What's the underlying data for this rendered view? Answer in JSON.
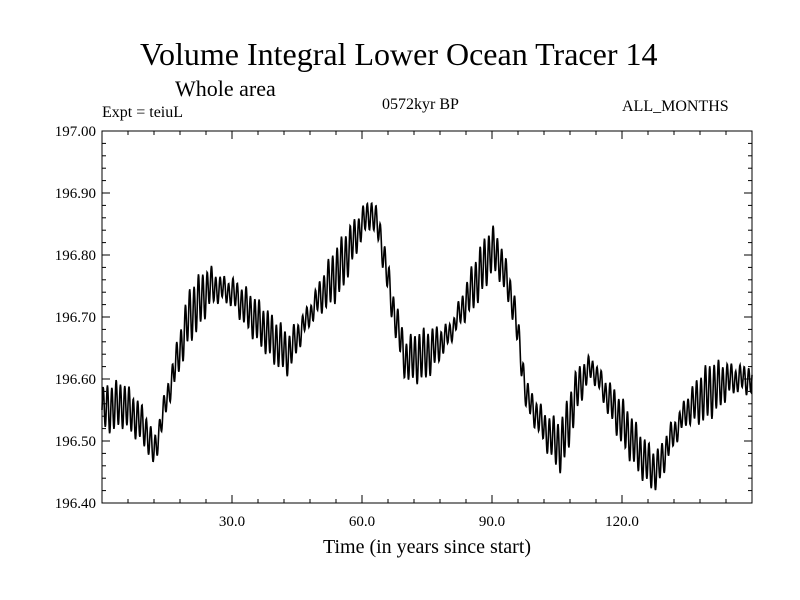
{
  "chart_data": {
    "type": "line",
    "title": "Volume Integral Lower Ocean Tracer 14",
    "subtitle": "Whole area",
    "left_label": "Expt = teiuL",
    "center_label": "0572kyr BP",
    "right_label": "ALL_MONTHS",
    "xlabel": "Time (in years since start)",
    "ylabel": "",
    "xlim": [
      0,
      150
    ],
    "ylim": [
      196.4,
      197.0
    ],
    "x_ticks": [
      30,
      60,
      90,
      120
    ],
    "x_tick_labels": [
      "30.0",
      "60.0",
      "90.0",
      "120.0"
    ],
    "y_ticks": [
      196.4,
      196.5,
      196.6,
      196.7,
      196.8,
      196.9,
      197.0
    ],
    "y_tick_labels": [
      "196.40",
      "196.50",
      "196.60",
      "196.70",
      "196.80",
      "196.90",
      "197.00"
    ],
    "series": [
      {
        "name": "Tracer 14",
        "color": "#000000",
        "trend": [
          [
            0,
            196.55
          ],
          [
            5,
            196.56
          ],
          [
            10,
            196.52
          ],
          [
            12,
            196.48
          ],
          [
            15,
            196.57
          ],
          [
            20,
            196.7
          ],
          [
            25,
            196.75
          ],
          [
            30,
            196.74
          ],
          [
            35,
            196.7
          ],
          [
            40,
            196.66
          ],
          [
            43,
            196.64
          ],
          [
            46,
            196.68
          ],
          [
            50,
            196.73
          ],
          [
            55,
            196.78
          ],
          [
            60,
            196.85
          ],
          [
            62,
            196.87
          ],
          [
            64,
            196.84
          ],
          [
            67,
            196.72
          ],
          [
            70,
            196.63
          ],
          [
            75,
            196.64
          ],
          [
            80,
            196.67
          ],
          [
            85,
            196.74
          ],
          [
            90,
            196.81
          ],
          [
            92,
            196.79
          ],
          [
            95,
            196.72
          ],
          [
            98,
            196.57
          ],
          [
            103,
            196.51
          ],
          [
            106,
            196.49
          ],
          [
            110,
            196.59
          ],
          [
            113,
            196.62
          ],
          [
            116,
            196.58
          ],
          [
            120,
            196.53
          ],
          [
            125,
            196.47
          ],
          [
            128,
            196.45
          ],
          [
            131,
            196.5
          ],
          [
            135,
            196.55
          ],
          [
            140,
            196.58
          ],
          [
            145,
            196.6
          ],
          [
            150,
            196.6
          ]
        ],
        "oscillation_amplitude": 0.038,
        "oscillation_period_years": 1.0
      }
    ]
  }
}
